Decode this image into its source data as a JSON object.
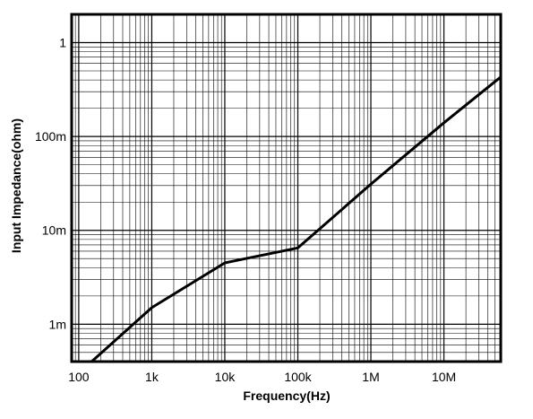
{
  "chart_data": {
    "type": "line",
    "xlabel": "Frequency(Hz)",
    "ylabel": "Input Impedance(ohm)",
    "x_scale": "log",
    "y_scale": "log",
    "xlim": [
      80,
      60000000
    ],
    "ylim": [
      0.0004,
      2
    ],
    "grid": true,
    "x_ticks": [
      {
        "value": 100,
        "label": "100"
      },
      {
        "value": 1000,
        "label": "1k"
      },
      {
        "value": 10000,
        "label": "10k"
      },
      {
        "value": 100000,
        "label": "100k"
      },
      {
        "value": 1000000,
        "label": "1M"
      },
      {
        "value": 10000000,
        "label": "10M"
      }
    ],
    "y_ticks": [
      {
        "value": 0.001,
        "label": "1m"
      },
      {
        "value": 0.01,
        "label": "10m"
      },
      {
        "value": 0.1,
        "label": "100m"
      },
      {
        "value": 1,
        "label": "1"
      }
    ],
    "series": [
      {
        "color": "#000000",
        "x": [
          150,
          1000,
          10000,
          100000,
          1000000,
          10000000,
          60000000
        ],
        "y": [
          0.0004,
          0.0015,
          0.0045,
          0.0065,
          0.031,
          0.14,
          0.43
        ]
      }
    ]
  }
}
